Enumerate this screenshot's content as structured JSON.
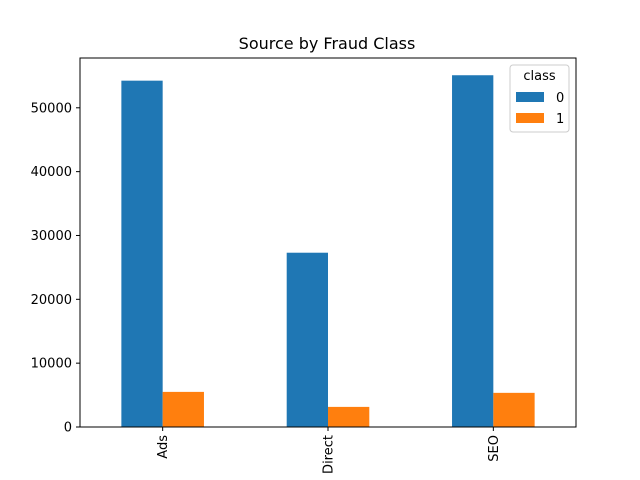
{
  "chart_data": {
    "type": "bar",
    "title": "Source by Fraud Class",
    "xlabel": "",
    "ylabel": "",
    "categories": [
      "Ads",
      "Direct",
      "SEO"
    ],
    "series": [
      {
        "name": "0",
        "color": "#1f77b4",
        "values": [
          54250,
          27300,
          55100
        ]
      },
      {
        "name": "1",
        "color": "#ff7f0e",
        "values": [
          5500,
          3150,
          5350
        ]
      }
    ],
    "ylim": [
      0,
      57800
    ],
    "yticks": [
      0,
      10000,
      20000,
      30000,
      40000,
      50000
    ],
    "grid": false,
    "legend": {
      "title": "class",
      "placement": "top-right"
    }
  }
}
